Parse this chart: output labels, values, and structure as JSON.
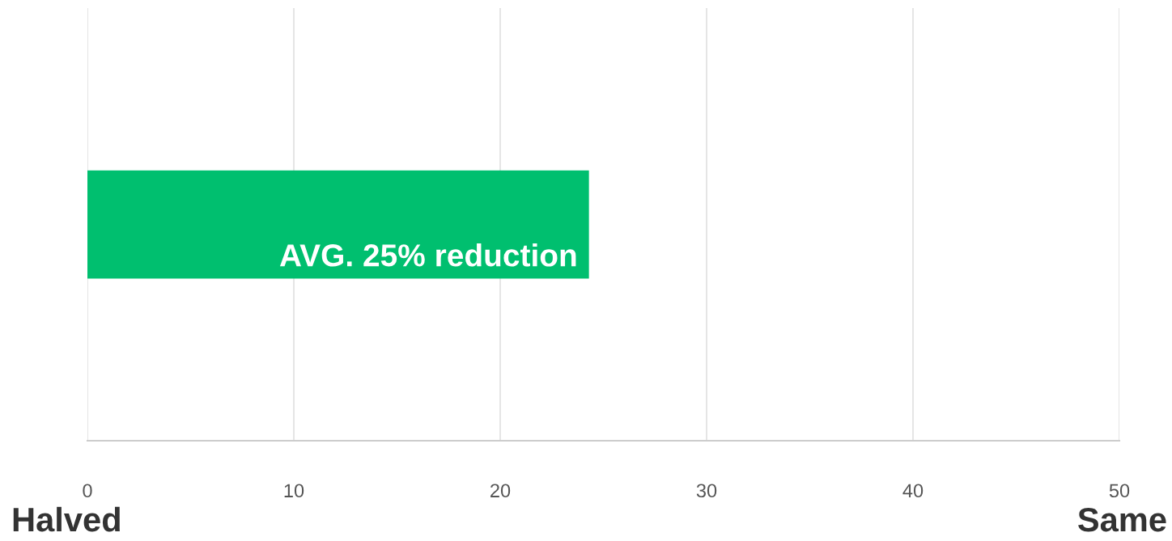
{
  "chart_data": {
    "type": "bar",
    "orientation": "horizontal",
    "categories": [
      null
    ],
    "values": [
      24.3
    ],
    "color": "#00bf6f",
    "xlim": [
      0,
      50
    ],
    "xticks": [
      0,
      10,
      20,
      30,
      40,
      50
    ],
    "grid": "x",
    "annotations": [
      {
        "text": "AVG. 25% reduction",
        "x": 24.3
      },
      "Halved",
      "Same"
    ]
  }
}
